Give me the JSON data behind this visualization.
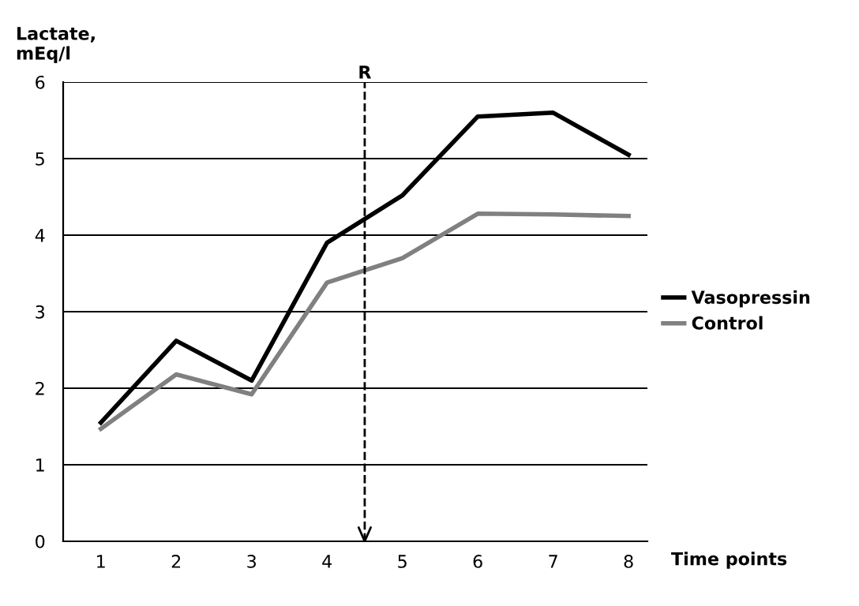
{
  "chart_data": {
    "type": "line",
    "ylabel": "Lactate,\nmEq/l",
    "xlabel": "Time points",
    "x": [
      1,
      2,
      3,
      4,
      5,
      6,
      7,
      8
    ],
    "series": [
      {
        "name": "Vasopressin",
        "color": "#000000",
        "values": [
          1.55,
          2.62,
          2.1,
          3.9,
          4.52,
          5.55,
          5.6,
          5.05
        ]
      },
      {
        "name": "Control",
        "color": "#808080",
        "values": [
          1.47,
          2.18,
          1.92,
          3.38,
          3.7,
          4.28,
          4.27,
          4.25
        ]
      }
    ],
    "xlim": [
      0.5,
      8.25
    ],
    "xticks": [
      1,
      2,
      3,
      4,
      5,
      6,
      7,
      8
    ],
    "ylim": [
      0,
      6
    ],
    "yticks": [
      0,
      1,
      2,
      3,
      4,
      5,
      6
    ],
    "ref_lines": [
      {
        "axis": "x",
        "value": 4.5,
        "label": "R",
        "line_style": "dashed"
      }
    ],
    "grid": "y",
    "legend": "right",
    "marker": "none",
    "line_style": "solid"
  }
}
